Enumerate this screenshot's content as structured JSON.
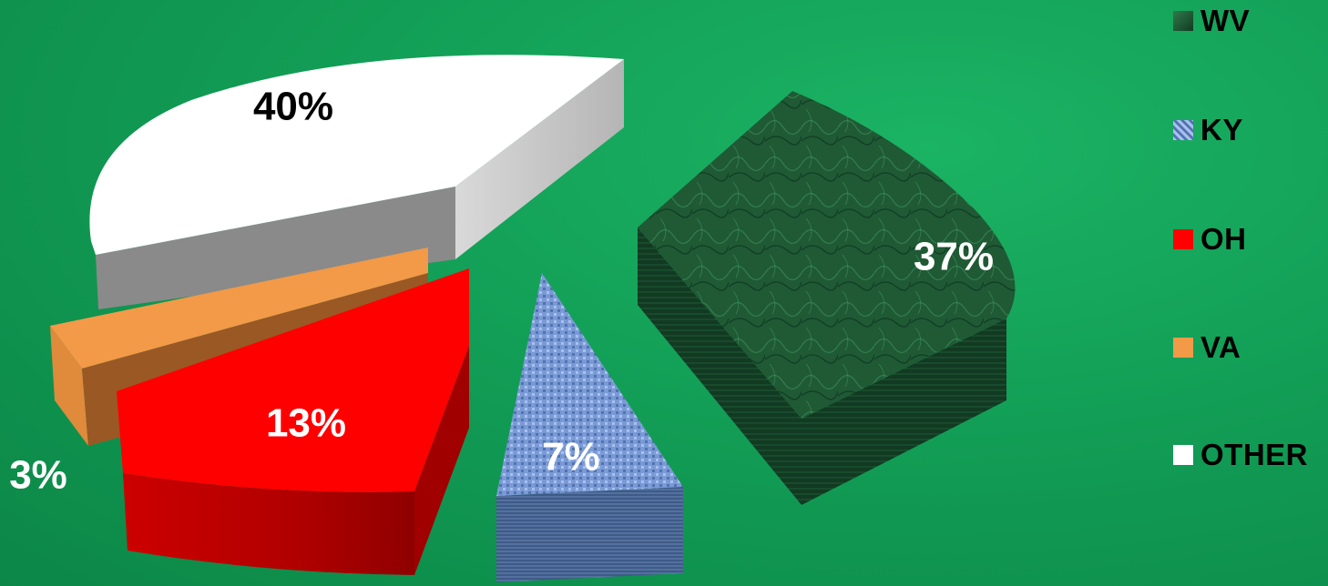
{
  "chart_data": {
    "type": "pie",
    "categories": [
      "WV",
      "KY",
      "OH",
      "VA",
      "OTHER"
    ],
    "values": [
      37,
      7,
      13,
      3,
      40
    ],
    "labels": [
      "37%",
      "7%",
      "13%",
      "3%",
      "40%"
    ],
    "legend_position": "right",
    "colors": [
      "#1f5a35",
      "#6f8fcf",
      "#ff0000",
      "#f09a4a",
      "#ffffff"
    ],
    "label_colors": [
      "#ffffff",
      "#ffffff",
      "#ffffff",
      "#ffffff",
      "#000000"
    ],
    "exploded": true,
    "three_d": true
  }
}
